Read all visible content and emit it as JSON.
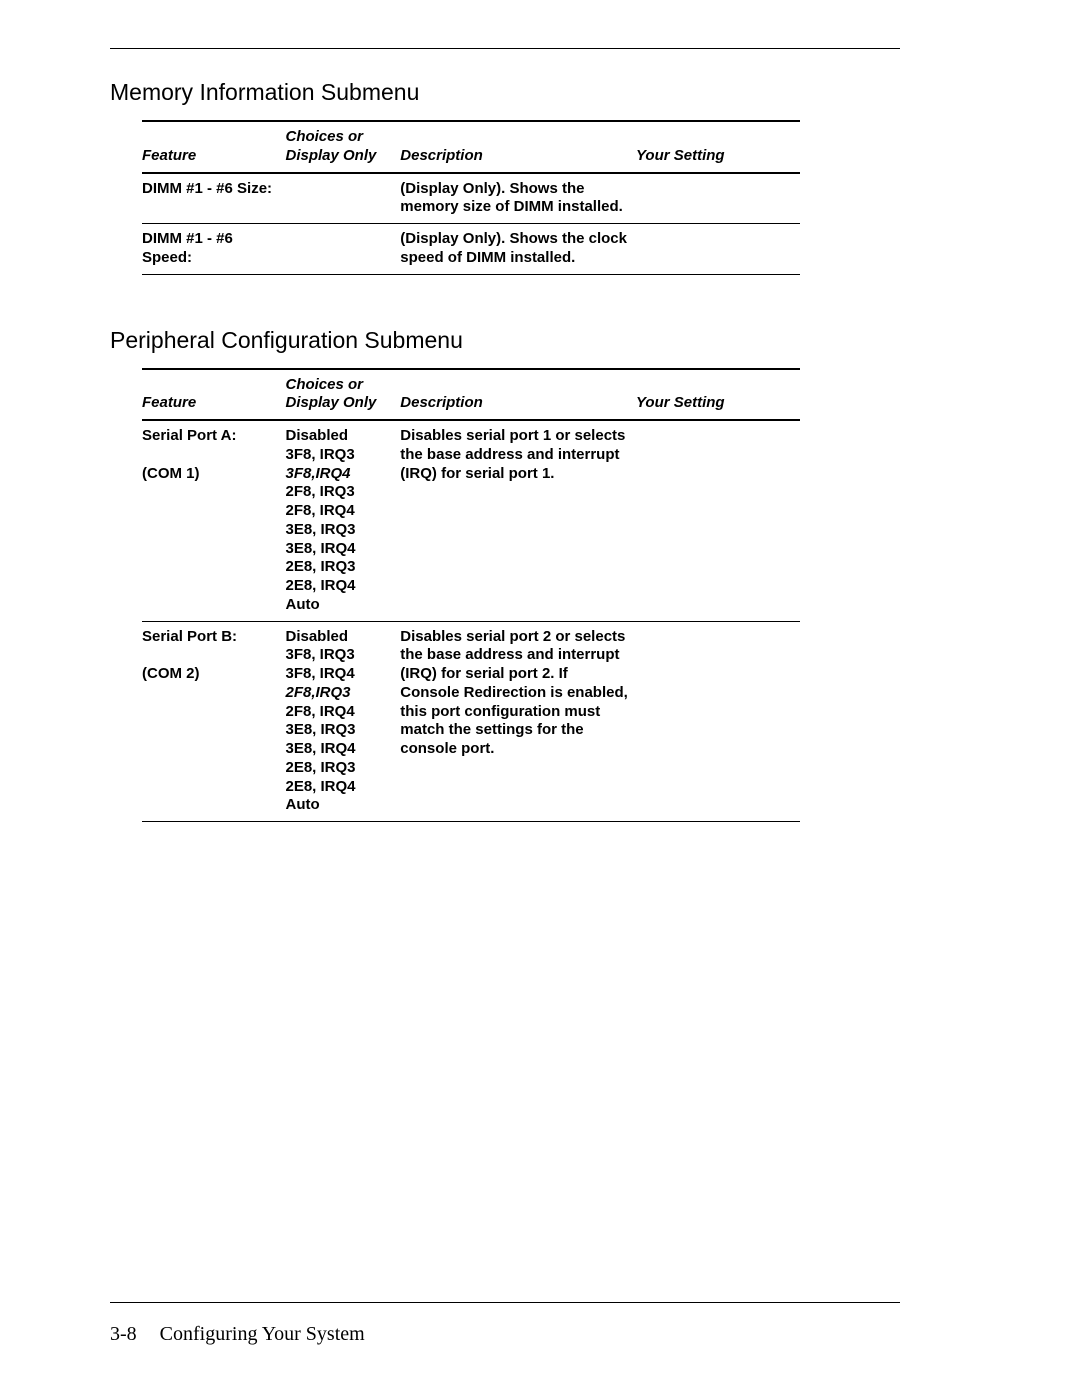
{
  "page": {
    "number": "3-8",
    "footer_title": "Configuring Your System"
  },
  "sections": {
    "memory": {
      "title": "Memory Information Submenu",
      "headers": {
        "feature": "Feature",
        "choices_line1": "Choices or",
        "choices_line2": "Display Only",
        "description": "Description",
        "setting": "Your Setting"
      },
      "rows": {
        "r0": {
          "feature": "DIMM #1 - #6 Size:",
          "choices": "",
          "description": "(Display Only). Shows the memory size of DIMM installed.",
          "setting": ""
        },
        "r1": {
          "feature": "DIMM #1 - #6 Speed:",
          "choices": "",
          "description": "(Display Only). Shows the clock speed of DIMM installed.",
          "setting": ""
        }
      }
    },
    "peripheral": {
      "title": "Peripheral Configuration Submenu",
      "headers": {
        "feature": "Feature",
        "choices_line1": "Choices or",
        "choices_line2": "Display Only",
        "description": "Description",
        "setting": "Your Setting"
      },
      "rows": {
        "r0": {
          "feature_l1": "Serial Port A:",
          "feature_l2": "(COM 1)",
          "choices": {
            "c0": "Disabled",
            "c1": "3F8, IRQ3",
            "c2_default": "3F8,IRQ4",
            "c3": "2F8, IRQ3",
            "c4": "2F8, IRQ4",
            "c5": "3E8, IRQ3",
            "c6": "3E8, IRQ4",
            "c7": "2E8, IRQ3",
            "c8": "2E8, IRQ4",
            "c9": "Auto"
          },
          "description": "Disables serial port 1 or selects the base address and interrupt (IRQ) for serial port 1.",
          "setting": ""
        },
        "r1": {
          "feature_l1": "Serial Port B:",
          "feature_l2": "(COM 2)",
          "choices": {
            "c0": "Disabled",
            "c1": "3F8, IRQ3",
            "c2": "3F8, IRQ4",
            "c3_default": "2F8,IRQ3",
            "c4": "2F8, IRQ4",
            "c5": "3E8, IRQ3",
            "c6": "3E8, IRQ4",
            "c7": "2E8, IRQ3",
            "c8": "2E8, IRQ4",
            "c9": "Auto"
          },
          "description": "Disables serial port 2 or selects the base address and interrupt (IRQ) for serial port 2. If Console Redirection is enabled, this port configuration must match the settings for the console port.",
          "setting": ""
        }
      }
    }
  }
}
